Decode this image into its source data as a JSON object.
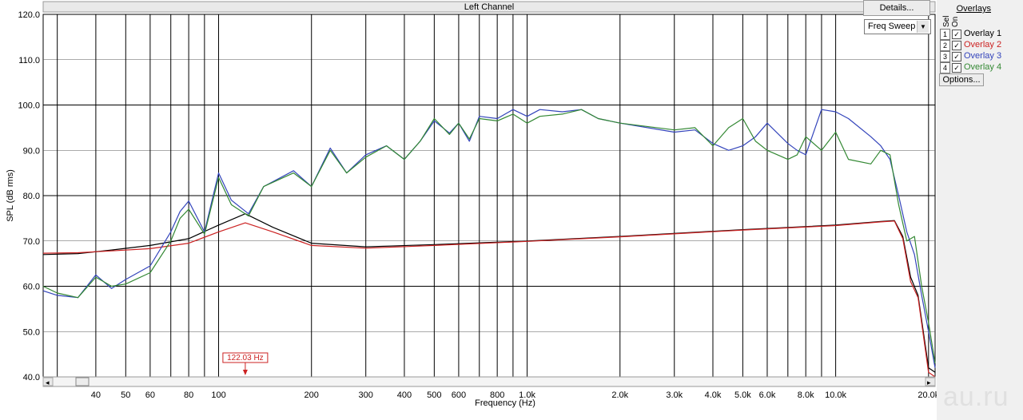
{
  "chart_data": {
    "type": "line",
    "title": "Left Channel",
    "xlabel": "Frequency (Hz)",
    "ylabel": "SPL (dB rms)",
    "x_scale": "log",
    "xlim": [
      27,
      21000
    ],
    "ylim": [
      40,
      120
    ],
    "grid": true,
    "y_ticks": [
      "120.0",
      "110.0",
      "100.0",
      "90.0",
      "80.0",
      "70.0",
      "60.0",
      "50.0",
      "40.0"
    ],
    "y_tick_values": [
      120,
      110,
      100,
      90,
      80,
      70,
      60,
      50,
      40
    ],
    "x_ticks": [
      {
        "value": 40,
        "label": "40"
      },
      {
        "value": 50,
        "label": "50"
      },
      {
        "value": 60,
        "label": "60"
      },
      {
        "value": 80,
        "label": "80"
      },
      {
        "value": 100,
        "label": "100"
      },
      {
        "value": 200,
        "label": "200"
      },
      {
        "value": 300,
        "label": "300"
      },
      {
        "value": 400,
        "label": "400"
      },
      {
        "value": 500,
        "label": "500"
      },
      {
        "value": 600,
        "label": "600"
      },
      {
        "value": 800,
        "label": "800"
      },
      {
        "value": 1000,
        "label": "1.0k"
      },
      {
        "value": 2000,
        "label": "2.0k"
      },
      {
        "value": 3000,
        "label": "3.0k"
      },
      {
        "value": 4000,
        "label": "4.0k"
      },
      {
        "value": 5000,
        "label": "5.0k"
      },
      {
        "value": 6000,
        "label": "6.0k"
      },
      {
        "value": 8000,
        "label": "8.0k"
      },
      {
        "value": 10000,
        "label": "10.0k"
      },
      {
        "value": 20000,
        "label": "20.0k"
      }
    ],
    "x_minor_grid": [
      30,
      70,
      90,
      700,
      900,
      7000,
      9000
    ],
    "marker": {
      "label": "122.03 Hz",
      "value": 122.03
    },
    "series": [
      {
        "name": "Overlay 1",
        "color": "#000000",
        "x": [
          27,
          35,
          45,
          60,
          80,
          100,
          122,
          150,
          200,
          300,
          500,
          1000,
          2000,
          5000,
          10000,
          14000,
          15500,
          16500,
          17500,
          18500,
          20000,
          21000
        ],
        "y": [
          67,
          67.2,
          68,
          69,
          70.5,
          73.5,
          76,
          73,
          69.5,
          68.7,
          69.2,
          70,
          71,
          72.5,
          73.5,
          74.3,
          74.5,
          71,
          62,
          58,
          42,
          41
        ]
      },
      {
        "name": "Overlay 2",
        "color": "#cc2222",
        "x": [
          27,
          35,
          45,
          60,
          80,
          100,
          122,
          150,
          200,
          300,
          500,
          1000,
          2000,
          5000,
          10000,
          14000,
          15500,
          16500,
          17500,
          18500,
          20000,
          21000
        ],
        "y": [
          67.3,
          67.4,
          67.8,
          68.3,
          69.5,
          72,
          74,
          72,
          69,
          68.4,
          69,
          69.9,
          70.9,
          72.4,
          73.4,
          74.2,
          74.4,
          70.5,
          61,
          57.5,
          41,
          40
        ]
      },
      {
        "name": "Overlay 3",
        "color": "#3344bb",
        "x": [
          27,
          30,
          35,
          40,
          45,
          50,
          60,
          70,
          75,
          80,
          90,
          100,
          110,
          125,
          140,
          175,
          200,
          230,
          260,
          300,
          350,
          400,
          450,
          500,
          560,
          600,
          650,
          700,
          800,
          900,
          1000,
          1100,
          1300,
          1500,
          1700,
          2000,
          3000,
          3500,
          4000,
          4500,
          5000,
          5500,
          6000,
          7000,
          7500,
          8000,
          9000,
          10000,
          11000,
          13000,
          14000,
          15000,
          16000,
          17000,
          18000,
          19000,
          20000,
          21000
        ],
        "y": [
          59,
          58,
          57.5,
          62.5,
          59.5,
          61.5,
          64.5,
          72,
          76.5,
          78.8,
          72,
          85,
          79,
          76,
          82,
          85.5,
          82,
          90.5,
          85,
          89,
          91,
          88,
          92,
          96.5,
          93.8,
          96,
          92,
          97.5,
          97,
          99,
          97.5,
          99,
          98.5,
          99,
          97,
          96,
          94,
          94.5,
          91.5,
          90,
          91,
          93,
          96,
          91.5,
          90,
          89,
          99,
          98.5,
          97,
          93,
          91,
          88,
          80,
          72,
          67,
          58,
          50,
          42
        ]
      },
      {
        "name": "Overlay 4",
        "color": "#338833",
        "x": [
          27,
          30,
          35,
          40,
          45,
          50,
          60,
          70,
          75,
          80,
          90,
          100,
          110,
          125,
          140,
          175,
          200,
          230,
          260,
          300,
          350,
          400,
          450,
          500,
          560,
          600,
          650,
          700,
          800,
          900,
          1000,
          1100,
          1300,
          1500,
          1700,
          2000,
          3000,
          3500,
          4000,
          4500,
          5000,
          5500,
          6000,
          7000,
          7500,
          8000,
          9000,
          10000,
          11000,
          13000,
          14000,
          15000,
          16000,
          17000,
          18000,
          19000,
          20000,
          21000
        ],
        "y": [
          60,
          58.5,
          57.5,
          62,
          60,
          60.5,
          63,
          70,
          75,
          77,
          71.5,
          84,
          78,
          75.5,
          82,
          85,
          82,
          90,
          85,
          88.5,
          91,
          88,
          92,
          97,
          93.5,
          96,
          92.5,
          97,
          96.5,
          98,
          96,
          97.5,
          98,
          99,
          97,
          96,
          94.5,
          95,
          91,
          95,
          97,
          92,
          90,
          88,
          89,
          93,
          90,
          94,
          88,
          87,
          90,
          89,
          78,
          70,
          71,
          60,
          52,
          43
        ]
      }
    ]
  },
  "panel": {
    "details_label": "Details...",
    "sweep_value": "Freq Sweep",
    "overlays_title": "Overlays",
    "col_sel": "Sel",
    "col_on": "On",
    "overlays": [
      {
        "num": "1",
        "label": "Overlay 1",
        "color": "#000000"
      },
      {
        "num": "2",
        "label": "Overlay 2",
        "color": "#cc2222"
      },
      {
        "num": "3",
        "label": "Overlay 3",
        "color": "#3344bb"
      },
      {
        "num": "4",
        "label": "Overlay 4",
        "color": "#338833"
      }
    ],
    "options_label": "Options..."
  },
  "watermark": "au.ru"
}
